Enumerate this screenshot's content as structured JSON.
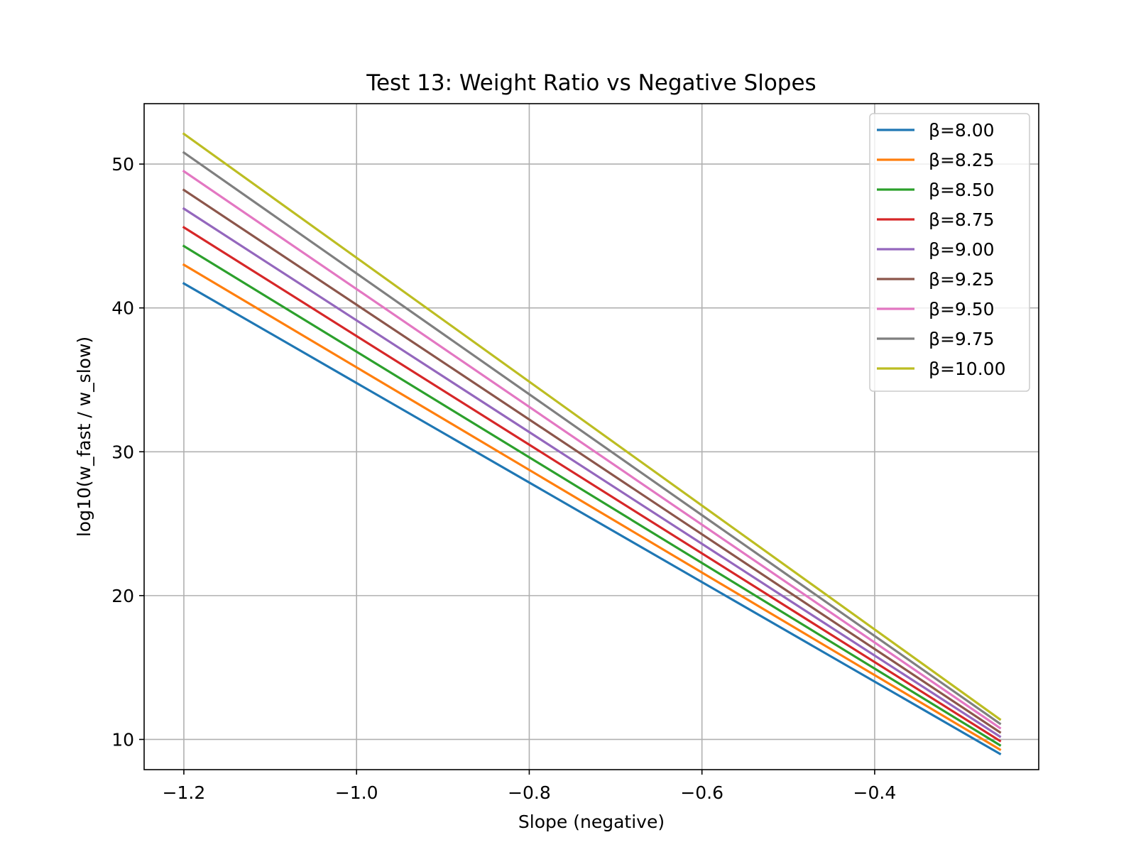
{
  "chart_data": {
    "type": "line",
    "title": "Test 13: Weight Ratio vs Negative Slopes",
    "xlabel": "Slope (negative)",
    "ylabel": "log10(w_fast / w_slow)",
    "xlim": [
      -1.246,
      -0.21
    ],
    "ylim": [
      7.9,
      54.2
    ],
    "xticks": [
      -1.2,
      -1.0,
      -0.8,
      -0.6,
      -0.4
    ],
    "xtick_labels": [
      "−1.2",
      "−1.0",
      "−0.8",
      "−0.6",
      "−0.4"
    ],
    "yticks": [
      10,
      20,
      30,
      40,
      50
    ],
    "ytick_labels": [
      "10",
      "20",
      "30",
      "40",
      "50"
    ],
    "grid": true,
    "legend_position": "upper right",
    "x": [
      -1.2,
      -0.255
    ],
    "series": [
      {
        "name": "β=8.00",
        "color": "#1f77b4",
        "values": [
          41.7,
          9.0
        ]
      },
      {
        "name": "β=8.25",
        "color": "#ff7f0e",
        "values": [
          43.0,
          9.3
        ]
      },
      {
        "name": "β=8.50",
        "color": "#2ca02c",
        "values": [
          44.3,
          9.6
        ]
      },
      {
        "name": "β=8.75",
        "color": "#d62728",
        "values": [
          45.6,
          9.9
        ]
      },
      {
        "name": "β=9.00",
        "color": "#9467bd",
        "values": [
          46.9,
          10.2
        ]
      },
      {
        "name": "β=9.25",
        "color": "#8c564b",
        "values": [
          48.2,
          10.5
        ]
      },
      {
        "name": "β=9.50",
        "color": "#e377c2",
        "values": [
          49.5,
          10.8
        ]
      },
      {
        "name": "β=9.75",
        "color": "#7f7f7f",
        "values": [
          50.8,
          11.1
        ]
      },
      {
        "name": "β=10.00",
        "color": "#bcbd22",
        "values": [
          52.1,
          11.4
        ]
      }
    ]
  }
}
